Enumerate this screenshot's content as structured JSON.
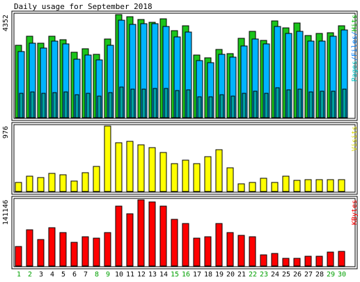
{
  "chart_data": {
    "type": "bar",
    "title": "Daily usage for September 2018",
    "categories": [
      "1",
      "2",
      "3",
      "4",
      "5",
      "6",
      "7",
      "8",
      "9",
      "10",
      "11",
      "12",
      "13",
      "14",
      "15",
      "16",
      "17",
      "18",
      "19",
      "20",
      "21",
      "22",
      "23",
      "24",
      "25",
      "26",
      "27",
      "28",
      "29",
      "30"
    ],
    "weekend_days": [
      "1",
      "2",
      "8",
      "9",
      "15",
      "16",
      "22",
      "23",
      "29",
      "30"
    ],
    "panels": [
      {
        "name": "hits-files-pages",
        "ymax_label": "4352",
        "ymax": 4352,
        "legend": [
          {
            "text": "Pages",
            "color": "#00c8c8"
          },
          {
            "text": "/",
            "color": "#0080ff"
          },
          {
            "text": "Files",
            "color": "#0080ff"
          },
          {
            "text": "/",
            "color": "#0080ff"
          },
          {
            "text": "Hits",
            "color": "#00c000"
          }
        ],
        "series": [
          {
            "name": "Hits",
            "color": "#1bc41b",
            "values": [
              3060,
              3440,
              3150,
              3450,
              3300,
              2770,
              2900,
              2690,
              3310,
              4350,
              4270,
              4140,
              4030,
              4180,
              3690,
              3870,
              2650,
              2520,
              2880,
              2700,
              3350,
              3650,
              3260,
              4100,
              3790,
              3990,
              3460,
              3560,
              3600,
              3880
            ]
          },
          {
            "name": "Files",
            "color": "#00b4ff",
            "values": [
              2800,
              3160,
              2930,
              3230,
              3130,
              2480,
              2660,
              2450,
              3050,
              4130,
              3950,
              3980,
              3960,
              3860,
              3410,
              3610,
              2400,
              2310,
              2670,
              2570,
              3040,
              3330,
              3110,
              3850,
              3570,
              3660,
              3240,
              3230,
              3440,
              3710
            ]
          },
          {
            "name": "Pages",
            "color": "#00a0a0",
            "values": [
              1030,
              1090,
              1040,
              1060,
              1080,
              980,
              1040,
              920,
              1070,
              1290,
              1210,
              1200,
              1240,
              1230,
              1140,
              1170,
              880,
              870,
              960,
              920,
              1040,
              1110,
              1030,
              1260,
              1180,
              1210,
              1080,
              1110,
              1130,
              1210
            ]
          }
        ]
      },
      {
        "name": "visits",
        "ymax_label": "976",
        "ymax": 976,
        "legend": [
          {
            "text": "Visits",
            "color": "#d8d800"
          }
        ],
        "series": [
          {
            "name": "Visits",
            "color": "#ffff00",
            "values": [
              130,
              230,
              210,
              265,
              245,
              155,
              285,
              370,
              976,
              730,
              750,
              700,
              650,
              580,
              420,
              470,
              420,
              520,
              620,
              350,
              110,
              130,
              200,
              135,
              230,
              165,
              175,
              175,
              180,
              180
            ]
          }
        ]
      },
      {
        "name": "kbytes",
        "ymax_label": "141146",
        "ymax": 141146,
        "legend": [
          {
            "text": "KBytes",
            "color": "#ff0000"
          }
        ],
        "series": [
          {
            "name": "KBytes",
            "color": "#ff0000",
            "values": [
              42000,
              77000,
              56000,
              82000,
              71000,
              50000,
              62000,
              59000,
              72000,
              128000,
              112000,
              141146,
              137000,
              128000,
              99000,
              90000,
              60000,
              63000,
              90000,
              71000,
              66000,
              62000,
              24000,
              27000,
              17000,
              17000,
              21000,
              21000,
              29000,
              31000
            ]
          }
        ]
      }
    ]
  }
}
